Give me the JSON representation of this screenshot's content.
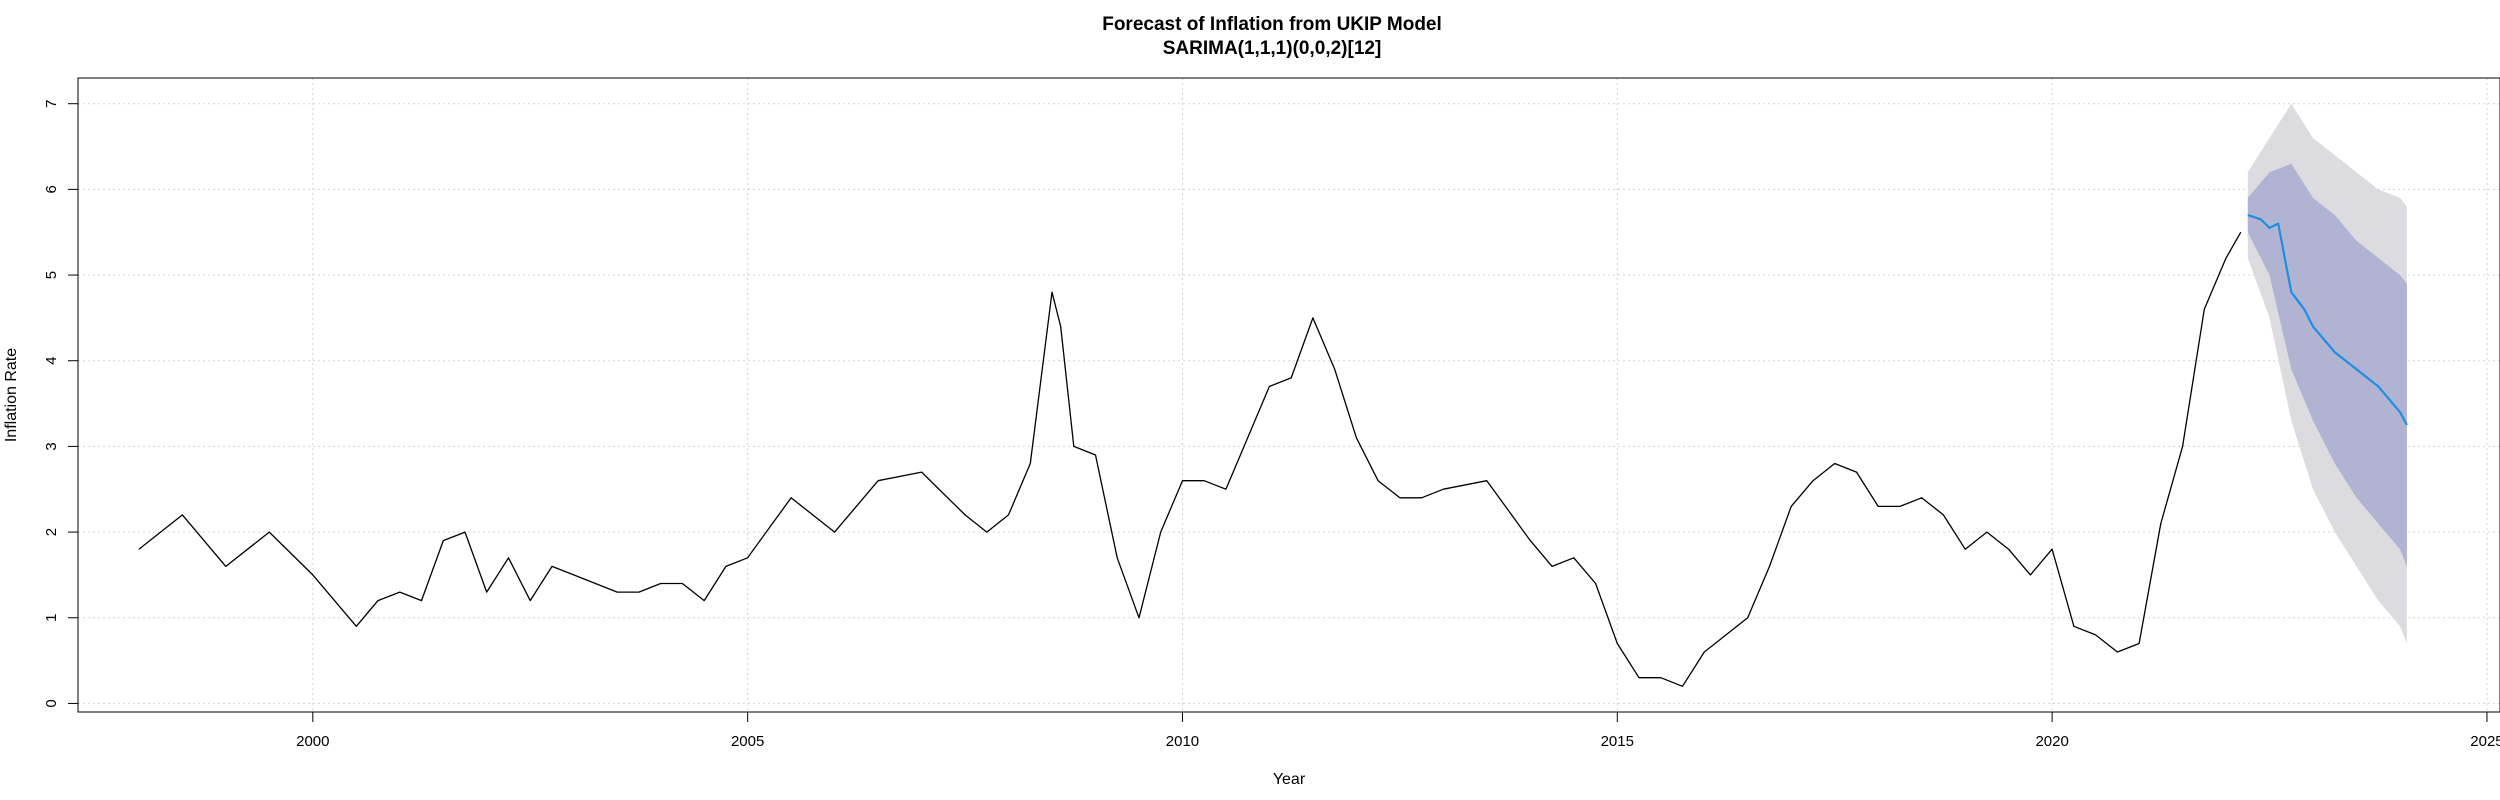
{
  "chart_data": {
    "type": "line",
    "title": "Forecast of Inflation from UKIP Model",
    "subtitle": "SARIMA(1,1,1)(0,0,2)[12]",
    "xlabel": "Year",
    "ylabel": "Inflation Rate",
    "xlim": [
      1997.3,
      2025.15
    ],
    "ylim": [
      -0.1,
      7.3
    ],
    "x_ticks": [
      2000,
      2005,
      2010,
      2015,
      2020,
      2025
    ],
    "y_ticks": [
      0,
      1,
      2,
      3,
      4,
      5,
      6,
      7
    ],
    "grid": true,
    "colors": {
      "history": "#000000",
      "forecast": "#1f8ee0",
      "band80": "#b0b3d2",
      "band95": "#dcdce0"
    },
    "series": [
      {
        "x": [
          1998.0,
          1998.5,
          1999.0,
          1999.5,
          2000.0,
          2000.25,
          2000.5,
          2000.75,
          2001.0,
          2001.25,
          2001.5,
          2001.75,
          2002.0,
          2002.25,
          2002.5,
          2002.75,
          2003.0,
          2003.25,
          2003.5,
          2003.75,
          2004.0,
          2004.25,
          2004.5,
          2004.75,
          2005.0,
          2005.5,
          2006.0,
          2006.5,
          2007.0,
          2007.5,
          2007.75,
          2008.0,
          2008.25,
          2008.5,
          2008.6,
          2008.75,
          2009.0,
          2009.25,
          2009.5,
          2009.75,
          2010.0,
          2010.25,
          2010.5,
          2010.75,
          2011.0,
          2011.25,
          2011.5,
          2011.75,
          2012.0,
          2012.25,
          2012.5,
          2012.75,
          2013.0,
          2013.5,
          2014.0,
          2014.25,
          2014.5,
          2014.75,
          2015.0,
          2015.25,
          2015.5,
          2015.75,
          2016.0,
          2016.25,
          2016.5,
          2016.75,
          2017.0,
          2017.25,
          2017.5,
          2017.75,
          2018.0,
          2018.25,
          2018.5,
          2018.75,
          2019.0,
          2019.25,
          2019.5,
          2019.75,
          2020.0,
          2020.25,
          2020.5,
          2020.75,
          2021.0,
          2021.25,
          2021.5,
          2021.75,
          2022.0,
          2022.17
        ],
        "values": [
          1.8,
          2.2,
          1.6,
          2.0,
          1.5,
          1.2,
          0.9,
          1.2,
          1.3,
          1.2,
          1.9,
          2.0,
          1.3,
          1.7,
          1.2,
          1.6,
          1.5,
          1.4,
          1.3,
          1.3,
          1.4,
          1.4,
          1.2,
          1.6,
          1.7,
          2.4,
          2.0,
          2.6,
          2.7,
          2.2,
          2.0,
          2.2,
          2.8,
          4.8,
          4.4,
          3.0,
          2.9,
          1.7,
          1.0,
          2.0,
          2.6,
          2.6,
          2.5,
          3.1,
          3.7,
          3.8,
          4.5,
          3.9,
          3.1,
          2.6,
          2.4,
          2.4,
          2.5,
          2.6,
          1.9,
          1.6,
          1.7,
          1.4,
          0.7,
          0.3,
          0.3,
          0.2,
          0.6,
          0.8,
          1.0,
          1.6,
          2.3,
          2.6,
          2.8,
          2.7,
          2.3,
          2.3,
          2.4,
          2.2,
          1.8,
          2.0,
          1.8,
          1.5,
          1.8,
          0.9,
          0.8,
          0.6,
          0.7,
          2.1,
          3.0,
          4.6,
          5.2,
          5.5
        ]
      },
      {
        "x": [
          2022.25,
          2022.4,
          2022.5,
          2022.6,
          2022.75,
          2022.9,
          2023.0,
          2023.25,
          2023.5,
          2023.75,
          2024.0,
          2024.08
        ],
        "values": [
          5.7,
          5.65,
          5.55,
          5.6,
          4.8,
          4.6,
          4.4,
          4.1,
          3.9,
          3.7,
          3.4,
          3.25
        ]
      }
    ],
    "bands": [
      {
        "x": [
          2022.25,
          2022.5,
          2022.75,
          2023.0,
          2023.25,
          2023.5,
          2023.75,
          2024.0,
          2024.08
        ],
        "lower": [
          0.0,
          0.0,
          0.0,
          0.0,
          0.0,
          0.0,
          0.0,
          0.0,
          0.0
        ],
        "upper": [
          0.0,
          0.0,
          0.0,
          0.0,
          0.0,
          0.0,
          0.0,
          0.0,
          0.0
        ]
      }
    ],
    "bands_80": {
      "x": [
        2022.25,
        2022.5,
        2022.75,
        2023.0,
        2023.25,
        2023.5,
        2023.75,
        2024.0,
        2024.08
      ],
      "lower": [
        5.5,
        5.0,
        3.9,
        3.3,
        2.8,
        2.4,
        2.1,
        1.8,
        1.6
      ],
      "upper": [
        5.9,
        6.2,
        6.3,
        5.9,
        5.7,
        5.4,
        5.2,
        5.0,
        4.9
      ]
    },
    "bands_95": {
      "x": [
        2022.25,
        2022.5,
        2022.75,
        2023.0,
        2023.25,
        2023.5,
        2023.75,
        2024.0,
        2024.08
      ],
      "lower": [
        5.2,
        4.5,
        3.3,
        2.5,
        2.0,
        1.6,
        1.2,
        0.9,
        0.7
      ],
      "upper": [
        6.2,
        6.6,
        7.0,
        6.6,
        6.4,
        6.2,
        6.0,
        5.9,
        5.8
      ]
    }
  }
}
